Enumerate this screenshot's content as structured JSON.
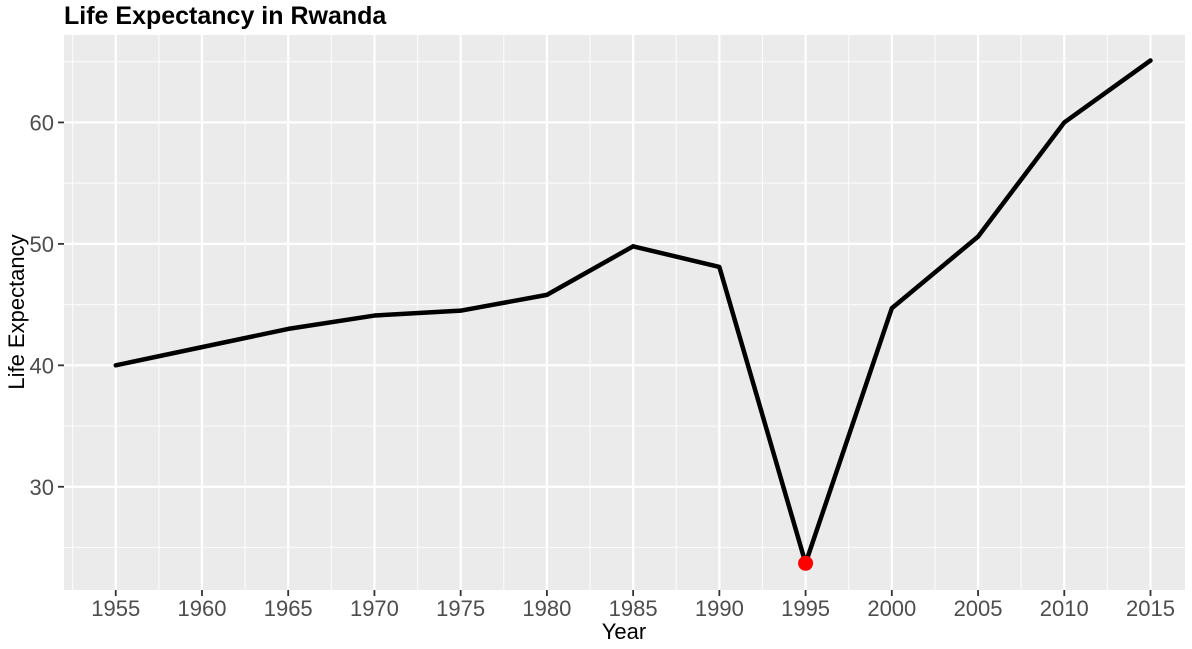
{
  "chart_data": {
    "type": "line",
    "title": "Life Expectancy in Rwanda",
    "xlabel": "Year",
    "ylabel": "Life Expectancy",
    "x": [
      1955,
      1960,
      1965,
      1970,
      1975,
      1980,
      1985,
      1990,
      1995,
      2000,
      2005,
      2010,
      2015
    ],
    "series": [
      {
        "values": [
          40.0,
          41.5,
          43.0,
          44.1,
          44.5,
          45.8,
          49.8,
          48.1,
          23.7,
          44.7,
          50.6,
          60.0,
          65.1
        ]
      }
    ],
    "highlight": {
      "x": 1995,
      "y": 23.7,
      "color": "#ff0000"
    },
    "xlim": [
      1952,
      2017
    ],
    "ylim": [
      21.5,
      67.2
    ],
    "xticks": [
      "1955",
      "1960",
      "1965",
      "1970",
      "1975",
      "1980",
      "1985",
      "1990",
      "1995",
      "2000",
      "2005",
      "2010",
      "2015"
    ],
    "yticks": [
      "30",
      "40",
      "50",
      "60"
    ],
    "grid": true,
    "line_color": "#000000",
    "panel_background": "#ebebeb"
  }
}
